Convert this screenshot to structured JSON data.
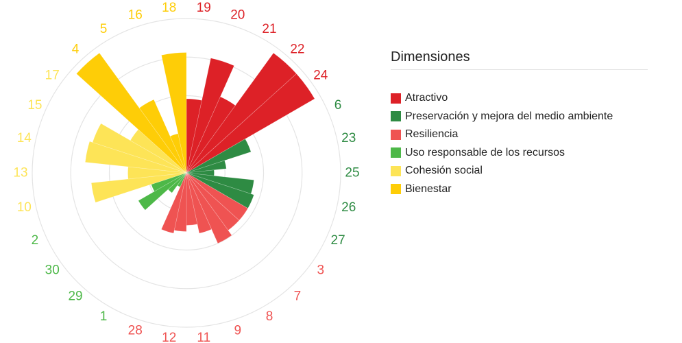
{
  "chart_data": {
    "type": "polar-bar",
    "legend_title": "Dimensiones",
    "legend_position": "right",
    "grid": true,
    "rmax": 5,
    "dimensions": [
      {
        "name": "Atractivo",
        "color": "#dd2127"
      },
      {
        "name": "Preservación y mejora del medio ambiente",
        "color": "#2e8b43"
      },
      {
        "name": "Resiliencia",
        "color": "#ef5352"
      },
      {
        "name": "Uso responsable de los recursos",
        "color": "#4db848"
      },
      {
        "name": "Cohesión social",
        "color": "#fde457"
      },
      {
        "name": "Bienestar",
        "color": "#fecd07"
      }
    ],
    "categories": [
      {
        "label": "19",
        "dimension": 0,
        "value": 2.4
      },
      {
        "label": "20",
        "dimension": 0,
        "value": 3.8
      },
      {
        "label": "21",
        "dimension": 0,
        "value": 2.7
      },
      {
        "label": "22",
        "dimension": 0,
        "value": 4.8
      },
      {
        "label": "24",
        "dimension": 0,
        "value": 4.8
      },
      {
        "label": "6",
        "dimension": 1,
        "value": 2.2
      },
      {
        "label": "23",
        "dimension": 1,
        "value": 1.3
      },
      {
        "label": "25",
        "dimension": 1,
        "value": 0.9
      },
      {
        "label": "26",
        "dimension": 1,
        "value": 2.2
      },
      {
        "label": "27",
        "dimension": 1,
        "value": 2.3
      },
      {
        "label": "3",
        "dimension": 2,
        "value": 2.3
      },
      {
        "label": "7",
        "dimension": 2,
        "value": 2.3
      },
      {
        "label": "8",
        "dimension": 2,
        "value": 2.5
      },
      {
        "label": "9",
        "dimension": 2,
        "value": 2.0
      },
      {
        "label": "11",
        "dimension": 2,
        "value": 1.7
      },
      {
        "label": "12",
        "dimension": 2,
        "value": 1.9
      },
      {
        "label": "28",
        "dimension": 2,
        "value": 2.0
      },
      {
        "label": "1",
        "dimension": 3,
        "value": 0.5
      },
      {
        "label": "29",
        "dimension": 3,
        "value": 0.8
      },
      {
        "label": "30",
        "dimension": 3,
        "value": 1.8
      },
      {
        "label": "2",
        "dimension": 3,
        "value": 1.2
      },
      {
        "label": "10",
        "dimension": 4,
        "value": 3.1
      },
      {
        "label": "13",
        "dimension": 4,
        "value": 1.9
      },
      {
        "label": "14",
        "dimension": 4,
        "value": 3.3
      },
      {
        "label": "15",
        "dimension": 4,
        "value": 3.2
      },
      {
        "label": "17",
        "dimension": 4,
        "value": 2.1
      },
      {
        "label": "4",
        "dimension": 5,
        "value": 4.8
      },
      {
        "label": "5",
        "dimension": 5,
        "value": 2.6
      },
      {
        "label": "16",
        "dimension": 5,
        "value": 1.3
      },
      {
        "label": "18",
        "dimension": 5,
        "value": 3.9
      }
    ],
    "title": "",
    "xlabel": "",
    "ylabel": ""
  }
}
